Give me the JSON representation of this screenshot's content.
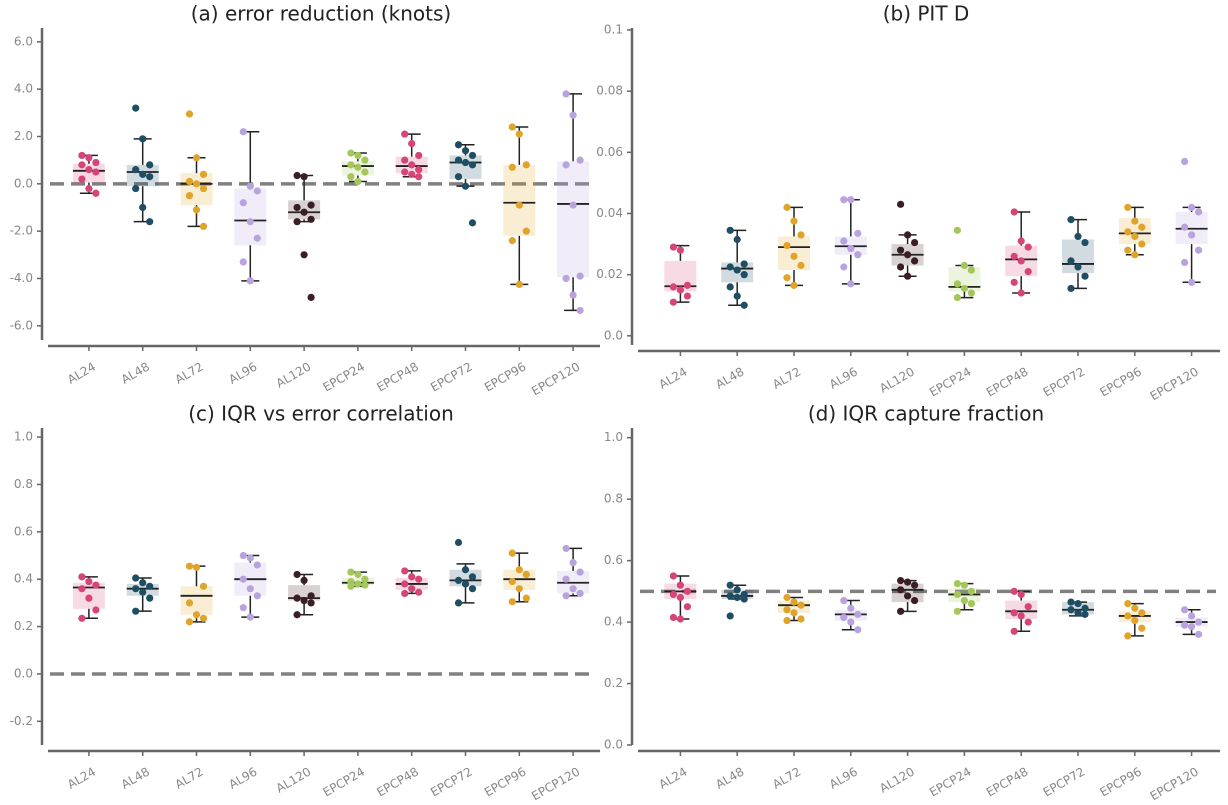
{
  "chart_data": [
    {
      "type": "box",
      "title": "(a) error reduction (knots)",
      "categories": [
        "AL24",
        "AL48",
        "AL72",
        "AL96",
        "AL120",
        "EPCP24",
        "EPCP48",
        "EPCP72",
        "EPCP96",
        "EPCP120"
      ],
      "colors": [
        "#d6457a",
        "#1f4e64",
        "#e0a42a",
        "#b9a3de",
        "#3a1d25",
        "#a4c65a",
        "#d6457a",
        "#1f4e64",
        "#e0a42a",
        "#b9a3de"
      ],
      "ylim": [
        -6.6,
        6.5
      ],
      "yticks": [
        {
          "value": -6,
          "label": "-6.0"
        },
        {
          "value": -4,
          "label": "-4.0"
        },
        {
          "value": -2,
          "label": "-2.0"
        },
        {
          "value": 0,
          "label": "0.0"
        },
        {
          "value": 2,
          "label": "2.0"
        },
        {
          "value": 4,
          "label": "4.0"
        },
        {
          "value": 6,
          "label": "6.0"
        }
      ],
      "reference_line": 0,
      "boxes": [
        {
          "low": -0.4,
          "q1": 0.05,
          "median": 0.55,
          "q3": 0.85,
          "high": 1.2,
          "points": [
            1.2,
            1.1,
            0.9,
            0.8,
            0.6,
            0.5,
            0.2,
            -0.2,
            -0.4
          ]
        },
        {
          "low": -1.6,
          "q1": -0.1,
          "median": 0.5,
          "q3": 0.8,
          "high": 1.9,
          "points": [
            3.2,
            1.9,
            0.8,
            0.6,
            0.4,
            0.3,
            -0.2,
            -1.0,
            -1.6
          ]
        },
        {
          "low": -1.8,
          "q1": -0.9,
          "median": 0.0,
          "q3": 0.45,
          "high": 1.1,
          "points": [
            2.95,
            1.1,
            0.4,
            0.1,
            0.0,
            -0.2,
            -0.5,
            -1.1,
            -1.8
          ]
        },
        {
          "low": -4.1,
          "q1": -2.6,
          "median": -1.55,
          "q3": -0.2,
          "high": 2.2,
          "points": [
            2.2,
            -0.1,
            -0.3,
            -0.8,
            -1.6,
            -2.3,
            -3.3,
            -4.1
          ]
        },
        {
          "low": -1.6,
          "q1": -1.5,
          "median": -1.2,
          "q3": -0.7,
          "high": 0.35,
          "points": [
            0.35,
            0.3,
            -0.9,
            -1.0,
            -1.2,
            -1.5,
            -1.6,
            -3.0,
            -4.8
          ]
        },
        {
          "low": 0.1,
          "q1": 0.35,
          "median": 0.75,
          "q3": 0.95,
          "high": 1.3,
          "points": [
            1.3,
            1.2,
            1.0,
            0.8,
            0.7,
            0.5,
            0.3,
            0.1
          ]
        },
        {
          "low": 0.3,
          "q1": 0.45,
          "median": 0.75,
          "q3": 1.15,
          "high": 2.1,
          "points": [
            2.1,
            1.7,
            1.2,
            1.0,
            0.8,
            0.6,
            0.5,
            0.4,
            0.3
          ]
        },
        {
          "low": -0.1,
          "q1": 0.2,
          "median": 0.9,
          "q3": 1.2,
          "high": 1.65,
          "points": [
            1.65,
            1.4,
            1.2,
            1.0,
            0.9,
            0.8,
            0.3,
            -0.1,
            -1.65
          ]
        },
        {
          "low": -4.25,
          "q1": -2.2,
          "median": -0.8,
          "q3": 0.8,
          "high": 2.4,
          "points": [
            2.4,
            2.1,
            0.8,
            0.7,
            -0.9,
            -2.0,
            -2.4,
            -4.25
          ]
        },
        {
          "low": -5.35,
          "q1": -3.95,
          "median": -0.85,
          "q3": 0.95,
          "high": 3.8,
          "points": [
            3.8,
            2.9,
            1.0,
            0.8,
            -0.9,
            -3.9,
            -4.0,
            -4.7,
            -5.35
          ]
        }
      ]
    },
    {
      "type": "box",
      "title": "(b) PIT D",
      "categories": [
        "AL24",
        "AL48",
        "AL72",
        "AL96",
        "AL120",
        "EPCP24",
        "EPCP48",
        "EPCP72",
        "EPCP96",
        "EPCP120"
      ],
      "colors": [
        "#d6457a",
        "#1f4e64",
        "#e0a42a",
        "#b9a3de",
        "#3a1d25",
        "#a4c65a",
        "#d6457a",
        "#1f4e64",
        "#e0a42a",
        "#b9a3de"
      ],
      "ylim": [
        -0.003,
        0.1
      ],
      "yticks": [
        {
          "value": 0,
          "label": "0.0"
        },
        0.02,
        0.04,
        0.06,
        0.08,
        0.1
      ],
      "boxes": [
        {
          "low": 0.011,
          "q1": 0.0145,
          "median": 0.0162,
          "q3": 0.0245,
          "high": 0.0295,
          "points": [
            0.029,
            0.028,
            0.0165,
            0.016,
            0.015,
            0.013,
            0.011
          ]
        },
        {
          "low": 0.01,
          "q1": 0.0175,
          "median": 0.022,
          "q3": 0.024,
          "high": 0.0345,
          "points": [
            0.0345,
            0.0315,
            0.0235,
            0.0225,
            0.0215,
            0.02,
            0.016,
            0.013,
            0.01
          ]
        },
        {
          "low": 0.0165,
          "q1": 0.0215,
          "median": 0.029,
          "q3": 0.0325,
          "high": 0.042,
          "points": [
            0.042,
            0.0375,
            0.033,
            0.0295,
            0.026,
            0.023,
            0.019,
            0.0165
          ]
        },
        {
          "low": 0.017,
          "q1": 0.0265,
          "median": 0.0293,
          "q3": 0.0325,
          "high": 0.0445,
          "points": [
            0.0445,
            0.0445,
            0.0335,
            0.031,
            0.0285,
            0.0265,
            0.0225,
            0.017
          ]
        },
        {
          "low": 0.0195,
          "q1": 0.023,
          "median": 0.0265,
          "q3": 0.03,
          "high": 0.033,
          "points": [
            0.043,
            0.033,
            0.0305,
            0.028,
            0.0265,
            0.0245,
            0.0225,
            0.0195
          ]
        },
        {
          "low": 0.0125,
          "q1": 0.0145,
          "median": 0.016,
          "q3": 0.0225,
          "high": 0.023,
          "points": [
            0.0345,
            0.023,
            0.0215,
            0.017,
            0.0155,
            0.014,
            0.0125
          ]
        },
        {
          "low": 0.014,
          "q1": 0.0195,
          "median": 0.025,
          "q3": 0.0295,
          "high": 0.0405,
          "points": [
            0.0405,
            0.031,
            0.029,
            0.026,
            0.0245,
            0.021,
            0.0175,
            0.014
          ]
        },
        {
          "low": 0.0155,
          "q1": 0.0205,
          "median": 0.0235,
          "q3": 0.0315,
          "high": 0.038,
          "points": [
            0.038,
            0.0325,
            0.0305,
            0.0245,
            0.0225,
            0.0195,
            0.0155
          ]
        },
        {
          "low": 0.0265,
          "q1": 0.03,
          "median": 0.0335,
          "q3": 0.0385,
          "high": 0.042,
          "points": [
            0.042,
            0.0375,
            0.0355,
            0.034,
            0.0325,
            0.03,
            0.028,
            0.0265
          ]
        },
        {
          "low": 0.0175,
          "q1": 0.03,
          "median": 0.035,
          "q3": 0.0405,
          "high": 0.042,
          "points": [
            0.057,
            0.042,
            0.0405,
            0.0355,
            0.033,
            0.028,
            0.024,
            0.0175
          ]
        }
      ]
    },
    {
      "type": "box",
      "title": "(c) IQR vs error correlation",
      "categories": [
        "AL24",
        "AL48",
        "AL72",
        "AL96",
        "AL120",
        "EPCP24",
        "EPCP48",
        "EPCP72",
        "EPCP96",
        "EPCP120"
      ],
      "colors": [
        "#d6457a",
        "#1f4e64",
        "#e0a42a",
        "#b9a3de",
        "#3a1d25",
        "#a4c65a",
        "#d6457a",
        "#1f4e64",
        "#e0a42a",
        "#b9a3de"
      ],
      "ylim": [
        -0.3,
        1.03
      ],
      "yticks": [
        -0.2,
        {
          "value": 0,
          "label": "0.0"
        },
        0.2,
        0.4,
        0.6,
        0.8,
        {
          "value": 1,
          "label": "1.0"
        }
      ],
      "reference_line": 0,
      "boxes": [
        {
          "low": 0.235,
          "q1": 0.275,
          "median": 0.365,
          "q3": 0.385,
          "high": 0.41,
          "points": [
            0.41,
            0.39,
            0.375,
            0.36,
            0.32,
            0.27,
            0.235
          ]
        },
        {
          "low": 0.265,
          "q1": 0.33,
          "median": 0.36,
          "q3": 0.38,
          "high": 0.405,
          "points": [
            0.405,
            0.385,
            0.37,
            0.36,
            0.345,
            0.32,
            0.265
          ]
        },
        {
          "low": 0.22,
          "q1": 0.25,
          "median": 0.33,
          "q3": 0.37,
          "high": 0.455,
          "points": [
            0.455,
            0.45,
            0.37,
            0.3,
            0.25,
            0.235,
            0.22
          ]
        },
        {
          "low": 0.24,
          "q1": 0.33,
          "median": 0.4,
          "q3": 0.47,
          "high": 0.5,
          "points": [
            0.5,
            0.49,
            0.46,
            0.4,
            0.36,
            0.33,
            0.28,
            0.24
          ]
        },
        {
          "low": 0.25,
          "q1": 0.31,
          "median": 0.32,
          "q3": 0.375,
          "high": 0.42,
          "points": [
            0.42,
            0.395,
            0.33,
            0.32,
            0.31,
            0.3,
            0.25
          ]
        },
        {
          "low": 0.37,
          "q1": 0.375,
          "median": 0.385,
          "q3": 0.405,
          "high": 0.43,
          "points": [
            0.43,
            0.42,
            0.4,
            0.39,
            0.38,
            0.375,
            0.37
          ]
        },
        {
          "low": 0.34,
          "q1": 0.355,
          "median": 0.38,
          "q3": 0.405,
          "high": 0.435,
          "points": [
            0.435,
            0.41,
            0.4,
            0.38,
            0.36,
            0.345,
            0.34
          ]
        },
        {
          "low": 0.3,
          "q1": 0.37,
          "median": 0.395,
          "q3": 0.44,
          "high": 0.465,
          "points": [
            0.555,
            0.44,
            0.41,
            0.395,
            0.38,
            0.36,
            0.3
          ]
        },
        {
          "low": 0.305,
          "q1": 0.355,
          "median": 0.4,
          "q3": 0.44,
          "high": 0.51,
          "points": [
            0.51,
            0.44,
            0.42,
            0.39,
            0.36,
            0.32,
            0.305
          ]
        },
        {
          "low": 0.33,
          "q1": 0.34,
          "median": 0.385,
          "q3": 0.435,
          "high": 0.53,
          "points": [
            0.53,
            0.47,
            0.43,
            0.4,
            0.36,
            0.34,
            0.33
          ]
        }
      ]
    },
    {
      "type": "box",
      "title": "(d) IQR capture fraction",
      "categories": [
        "AL24",
        "AL48",
        "AL72",
        "AL96",
        "AL120",
        "EPCP24",
        "EPCP48",
        "EPCP72",
        "EPCP96",
        "EPCP120"
      ],
      "colors": [
        "#d6457a",
        "#1f4e64",
        "#e0a42a",
        "#b9a3de",
        "#3a1d25",
        "#a4c65a",
        "#d6457a",
        "#1f4e64",
        "#e0a42a",
        "#b9a3de"
      ],
      "ylim": [
        0,
        1.025
      ],
      "yticks": [
        {
          "value": 0,
          "label": "0.0"
        },
        0.2,
        0.4,
        0.6,
        0.8,
        {
          "value": 1,
          "label": "1.0"
        }
      ],
      "reference_line": 0.5,
      "boxes": [
        {
          "low": 0.41,
          "q1": 0.475,
          "median": 0.5,
          "q3": 0.525,
          "high": 0.55,
          "points": [
            0.55,
            0.52,
            0.5,
            0.49,
            0.48,
            0.45,
            0.415,
            0.41
          ]
        },
        {
          "low": 0.475,
          "q1": 0.475,
          "median": 0.485,
          "q3": 0.505,
          "high": 0.52,
          "points": [
            0.52,
            0.505,
            0.49,
            0.485,
            0.48,
            0.475,
            0.42
          ]
        },
        {
          "low": 0.405,
          "q1": 0.43,
          "median": 0.455,
          "q3": 0.47,
          "high": 0.48,
          "points": [
            0.48,
            0.465,
            0.455,
            0.44,
            0.43,
            0.41,
            0.405
          ]
        },
        {
          "low": 0.375,
          "q1": 0.405,
          "median": 0.425,
          "q3": 0.44,
          "high": 0.47,
          "points": [
            0.47,
            0.445,
            0.425,
            0.415,
            0.4,
            0.375
          ]
        },
        {
          "low": 0.435,
          "q1": 0.465,
          "median": 0.505,
          "q3": 0.525,
          "high": 0.535,
          "points": [
            0.535,
            0.53,
            0.52,
            0.505,
            0.485,
            0.47,
            0.435
          ]
        },
        {
          "low": 0.44,
          "q1": 0.465,
          "median": 0.49,
          "q3": 0.51,
          "high": 0.525,
          "points": [
            0.525,
            0.52,
            0.5,
            0.49,
            0.47,
            0.46,
            0.435
          ]
        },
        {
          "low": 0.37,
          "q1": 0.41,
          "median": 0.435,
          "q3": 0.47,
          "high": 0.5,
          "points": [
            0.5,
            0.49,
            0.45,
            0.43,
            0.42,
            0.4,
            0.37
          ]
        },
        {
          "low": 0.42,
          "q1": 0.425,
          "median": 0.44,
          "q3": 0.465,
          "high": 0.465,
          "points": [
            0.465,
            0.46,
            0.445,
            0.44,
            0.43,
            0.425
          ]
        },
        {
          "low": 0.355,
          "q1": 0.4,
          "median": 0.42,
          "q3": 0.435,
          "high": 0.46,
          "points": [
            0.46,
            0.445,
            0.43,
            0.42,
            0.405,
            0.38,
            0.355
          ]
        },
        {
          "low": 0.36,
          "q1": 0.385,
          "median": 0.4,
          "q3": 0.415,
          "high": 0.44,
          "points": [
            0.44,
            0.42,
            0.4,
            0.39,
            0.385,
            0.36
          ]
        }
      ]
    }
  ]
}
